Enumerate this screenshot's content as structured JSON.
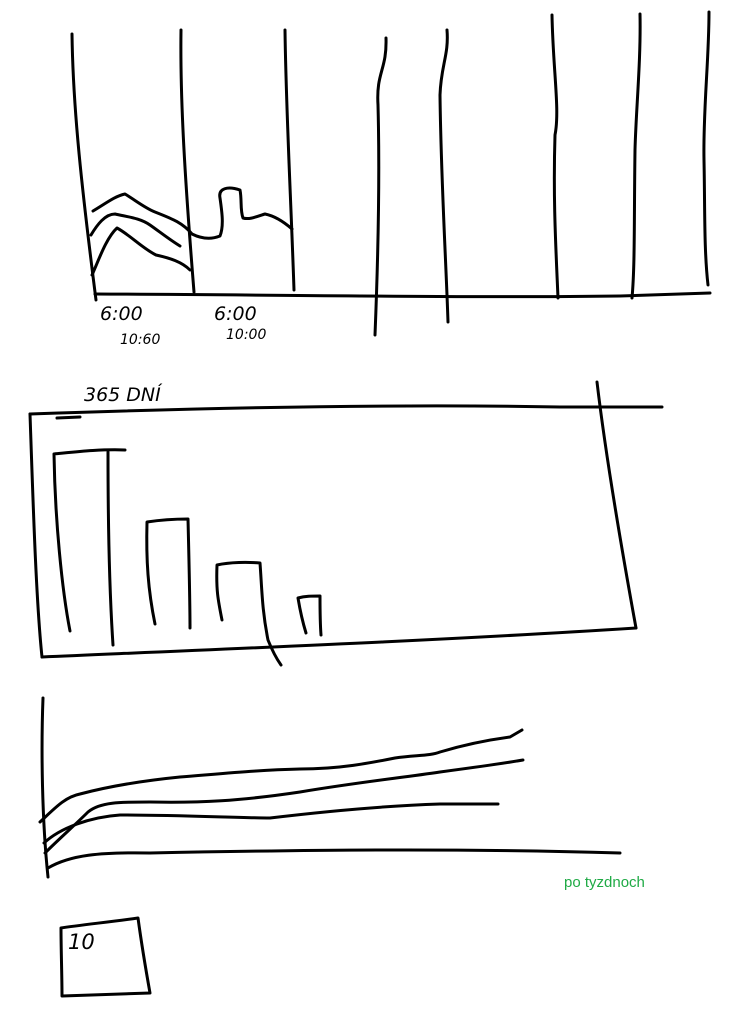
{
  "labels": {
    "time_1_start": "6:00",
    "time_1_end": "10:60",
    "time_2_start": "6:00",
    "time_2_end": "10:00",
    "days": "365 DNÍ",
    "weeks": "po tyzdnoch",
    "box_value": "10"
  },
  "colors": {
    "ink": "#000000",
    "green": "#1faa45",
    "red": "#e3211b",
    "yellow": "#f5c11a",
    "background": "#ffffff"
  }
}
